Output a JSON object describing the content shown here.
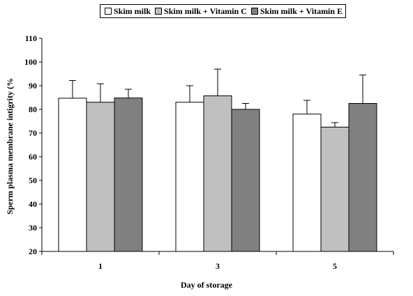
{
  "chart_data": {
    "type": "bar",
    "title": "",
    "xlabel": "Day of storage",
    "ylabel": "Sperm plasma membrane intigrity (%",
    "ylim": [
      20,
      110
    ],
    "yticks": [
      20,
      30,
      40,
      50,
      60,
      70,
      80,
      90,
      100,
      110
    ],
    "categories": [
      "1",
      "3",
      "5"
    ],
    "series": [
      {
        "name": "Skim milk",
        "color": "#ffffff",
        "values": [
          84.7,
          83.0,
          78.0
        ],
        "errors": [
          7.5,
          7.0,
          5.8
        ]
      },
      {
        "name": "Skim milk + Vitamin C",
        "color": "#c0c0c0",
        "values": [
          83.0,
          85.7,
          72.5
        ],
        "errors": [
          7.8,
          11.3,
          1.9
        ]
      },
      {
        "name": "Skim milk + Vitamin E",
        "color": "#808080",
        "values": [
          84.8,
          80.0,
          82.5
        ],
        "errors": [
          3.7,
          2.5,
          12.0
        ]
      }
    ],
    "legend": "top",
    "grid": false
  }
}
